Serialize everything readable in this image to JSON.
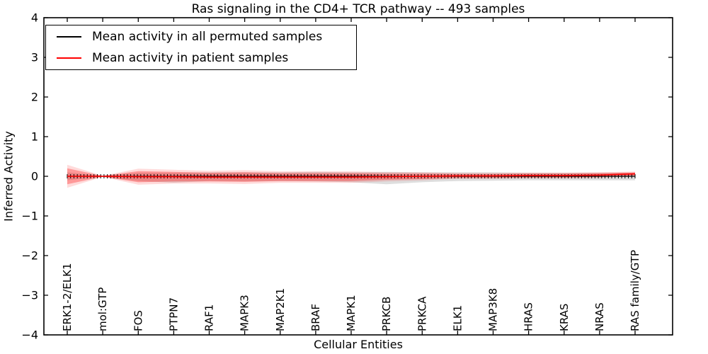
{
  "figure": {
    "title": "Ras signaling in the CD4+ TCR pathway -- 493 samples",
    "xlabel": "Cellular Entities",
    "ylabel": "Inferred Activity"
  },
  "legend": {
    "items": [
      {
        "label": "Mean activity in all permuted samples",
        "color": "#000000"
      },
      {
        "label": "Mean activity in patient samples",
        "color": "#ff0000"
      }
    ]
  },
  "colors": {
    "axes": "#000000",
    "permuted_line": "#000000",
    "patient_line": "#ff0000",
    "permuted_band": "rgba(0,0,0,0.13)",
    "patient_band_inner": "rgba(255,0,0,0.30)",
    "patient_band_outer": "rgba(255,0,0,0.14)",
    "background": "#ffffff"
  },
  "chart_data": {
    "type": "line",
    "title": "Ras signaling in the CD4+ TCR pathway -- 493 samples",
    "xlabel": "Cellular Entities",
    "ylabel": "Inferred Activity",
    "ylim": [
      -4,
      4
    ],
    "yticks": [
      4,
      3,
      2,
      1,
      0,
      -1,
      -2,
      -3,
      -4
    ],
    "ytick_labels": [
      "4",
      "3",
      "2",
      "1",
      "0",
      "−1",
      "−2",
      "−3",
      "−4"
    ],
    "grid": false,
    "legend_position": "upper left",
    "sample_count": 493,
    "categories": [
      "ERK1-2/ELK1",
      "mol:GTP",
      "FOS",
      "PTPN7",
      "RAF1",
      "MAPK3",
      "MAP2K1",
      "BRAF",
      "MAPK1",
      "PRKCB",
      "PRKCA",
      "ELK1",
      "MAP3K8",
      "HRAS",
      "KRAS",
      "NRAS",
      "RAS family/GTP"
    ],
    "series": [
      {
        "name": "Mean activity in all permuted samples",
        "color": "#000000",
        "marker": "dense-vertical-ticks",
        "marker_count": 171,
        "values": [
          0,
          0,
          0,
          0,
          0,
          0,
          0,
          0,
          0,
          0,
          0,
          0,
          0,
          0,
          0,
          0,
          0
        ],
        "band_upper": [
          0.1,
          0.01,
          0.09,
          0.09,
          0.1,
          0.1,
          0.1,
          0.11,
          0.1,
          0.11,
          0.1,
          0.1,
          0.1,
          0.09,
          0.09,
          0.09,
          0.09
        ],
        "band_lower": [
          -0.1,
          -0.01,
          -0.12,
          -0.16,
          -0.12,
          -0.13,
          -0.12,
          -0.13,
          -0.15,
          -0.2,
          -0.15,
          -0.12,
          -0.11,
          -0.1,
          -0.1,
          -0.1,
          -0.1
        ],
        "band_color": "rgba(0,0,0,0.13)"
      },
      {
        "name": "Mean activity in patient samples",
        "color": "#ff0000",
        "marker": "none",
        "values": [
          0,
          0,
          -0.01,
          -0.01,
          -0.02,
          -0.02,
          -0.02,
          -0.02,
          -0.02,
          -0.01,
          0,
          0.01,
          0.01,
          0.02,
          0.02,
          0.03,
          0.06
        ],
        "band_upper": [
          0.2,
          0.01,
          0.14,
          0.12,
          0.11,
          0.12,
          0.1,
          0.1,
          0.1,
          0.08,
          0.07,
          0.05,
          0.05,
          0.05,
          0.05,
          0.05,
          0.04
        ],
        "band_lower": [
          -0.2,
          -0.01,
          -0.14,
          -0.12,
          -0.11,
          -0.12,
          -0.1,
          -0.1,
          -0.1,
          -0.08,
          -0.07,
          -0.05,
          -0.05,
          -0.05,
          -0.05,
          -0.05,
          -0.04
        ],
        "band_color": "rgba(255,0,0,0.30)",
        "band_outer_color": "rgba(255,0,0,0.14)"
      }
    ]
  }
}
